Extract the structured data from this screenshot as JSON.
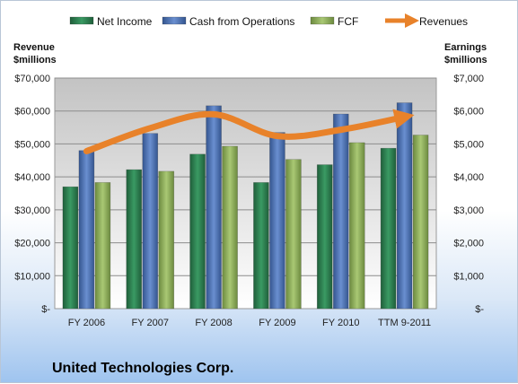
{
  "chart_data": {
    "type": "bar",
    "title": "United Technologies Corp.",
    "categories": [
      "FY 2006",
      "FY 2007",
      "FY 2008",
      "FY 2009",
      "FY 2010",
      "TTM 9-2011"
    ],
    "left_axis": {
      "label_line1": "Revenue",
      "label_line2": "$millions",
      "ylim": [
        0,
        70000
      ],
      "ticks": [
        "$-",
        "$10,000",
        "$20,000",
        "$30,000",
        "$40,000",
        "$50,000",
        "$60,000",
        "$70,000"
      ]
    },
    "right_axis": {
      "label_line1": "Earnings",
      "label_line2": "$millions",
      "ylim": [
        0,
        7000
      ],
      "ticks": [
        "$-",
        "$1,000",
        "$2,000",
        "$3,000",
        "$4,000",
        "$5,000",
        "$6,000",
        "$7,000"
      ]
    },
    "series": [
      {
        "name": "Net Income",
        "axis": "right",
        "kind": "bar",
        "color": "#2e7d4f",
        "values": [
          3700,
          4220,
          4690,
          3830,
          4370,
          4870
        ]
      },
      {
        "name": "Cash from Operations",
        "axis": "right",
        "kind": "bar",
        "color": "#4f74b8",
        "values": [
          4800,
          5320,
          6160,
          5350,
          5910,
          6250
        ]
      },
      {
        "name": "FCF",
        "axis": "right",
        "kind": "bar",
        "color": "#8dad5b",
        "values": [
          3830,
          4170,
          4930,
          4530,
          5040,
          5270
        ]
      },
      {
        "name": "Revenues",
        "axis": "left",
        "kind": "line",
        "color": "#e8822a",
        "values": [
          47800,
          54800,
          59000,
          52400,
          54300,
          58200
        ]
      }
    ],
    "grid": true,
    "legend_position": "top"
  }
}
